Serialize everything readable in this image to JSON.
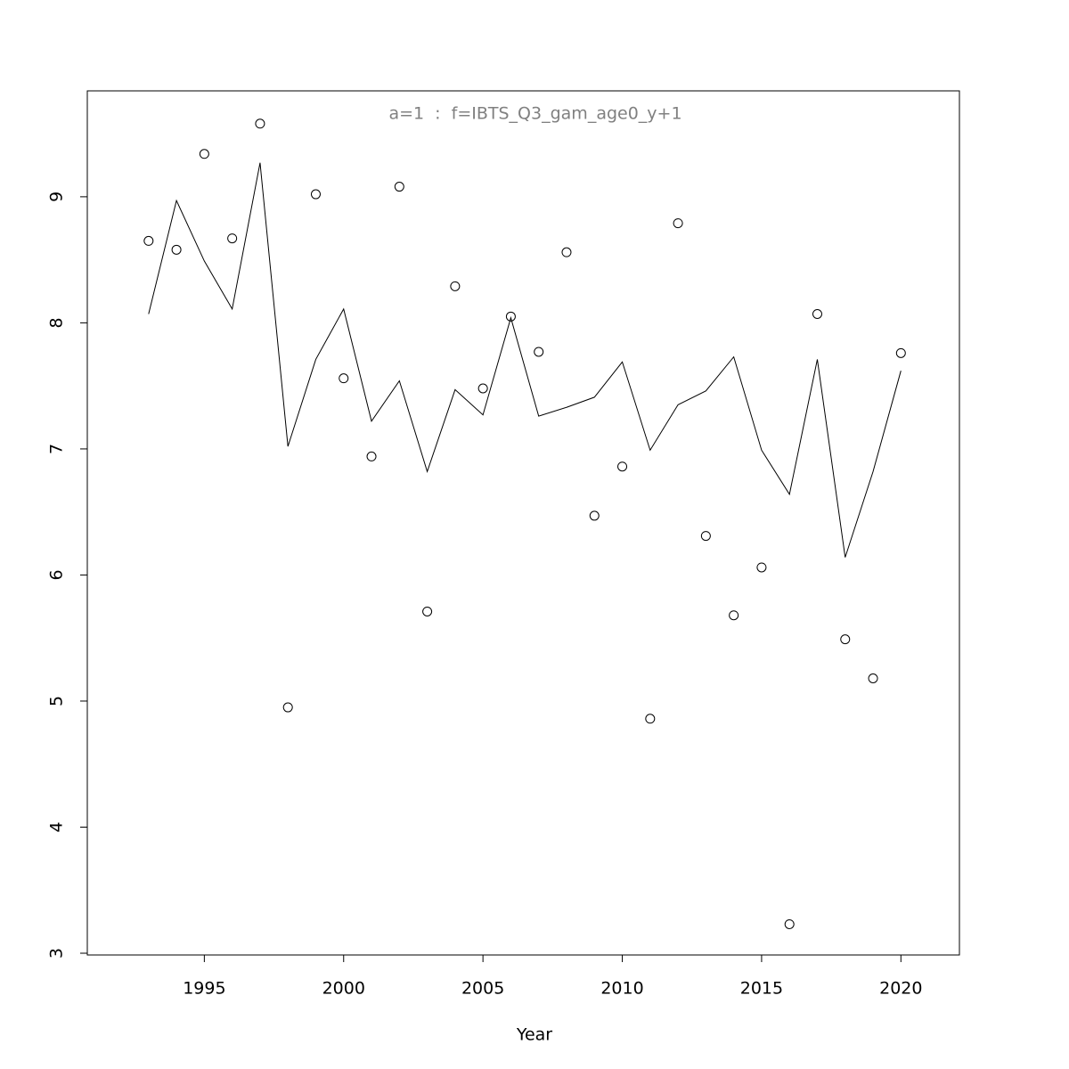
{
  "chart_data": {
    "type": "line",
    "title": "a=1  :  f=IBTS_Q3_gam_age0_y+1",
    "xlabel": "Year",
    "x": [
      1993,
      1994,
      1995,
      1996,
      1997,
      1998,
      1999,
      2000,
      2001,
      2002,
      2003,
      2004,
      2005,
      2006,
      2007,
      2008,
      2009,
      2010,
      2011,
      2012,
      2013,
      2014,
      2015,
      2016,
      2017,
      2018,
      2019,
      2020
    ],
    "series": [
      {
        "mode": "markers",
        "color": "#000000",
        "values": [
          8.65,
          8.58,
          9.34,
          8.67,
          9.58,
          4.95,
          9.02,
          7.56,
          6.94,
          9.08,
          5.71,
          8.29,
          7.48,
          8.05,
          7.77,
          8.56,
          6.47,
          6.86,
          4.86,
          8.79,
          6.31,
          5.68,
          6.06,
          3.23,
          8.07,
          5.49,
          5.18,
          7.76
        ]
      },
      {
        "mode": "lines",
        "color": "#000000",
        "values": [
          8.07,
          8.97,
          8.49,
          8.11,
          9.27,
          7.02,
          7.71,
          8.11,
          7.22,
          7.54,
          6.82,
          7.47,
          7.27,
          8.04,
          7.26,
          7.33,
          7.41,
          7.69,
          6.99,
          7.35,
          7.46,
          7.73,
          6.99,
          6.64,
          7.71,
          6.14,
          6.82,
          7.62
        ]
      }
    ],
    "xlim": [
      1990.8,
      2022.1
    ],
    "xticks": [
      1995,
      2000,
      2005,
      2010,
      2015,
      2020
    ],
    "ylim": [
      2.986,
      9.84
    ],
    "yticks": [
      3,
      4,
      5,
      6,
      7,
      8,
      9
    ],
    "title_color": "#808080"
  }
}
